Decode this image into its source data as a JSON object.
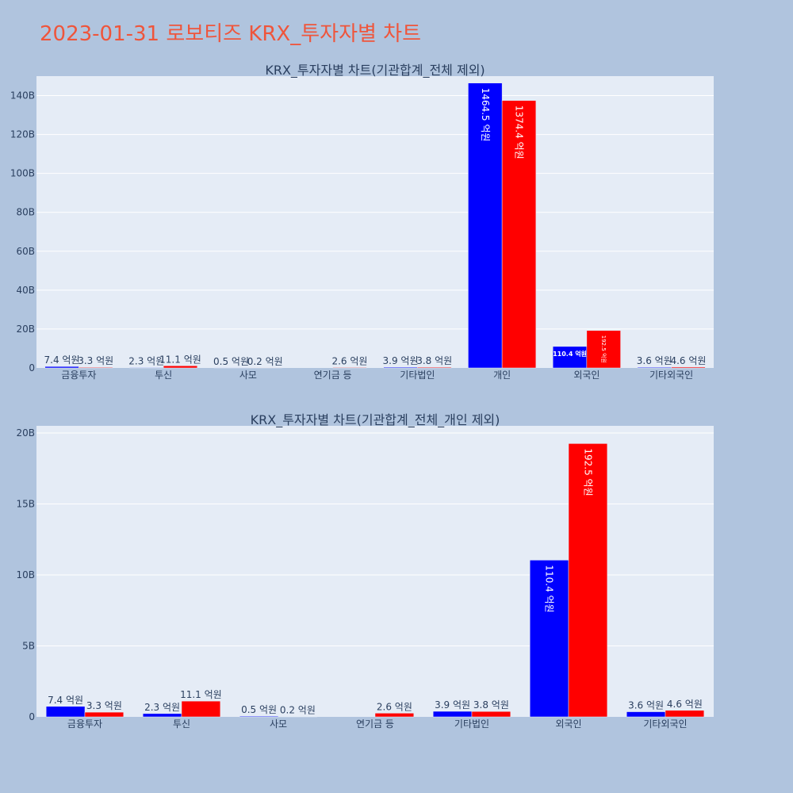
{
  "page": {
    "title": "2023-01-31 로보티즈 KRX_투자자별 차트"
  },
  "colors": {
    "buy": "#0000ff",
    "sell": "#ff0000",
    "plot_bg": "#e5ecf6",
    "page_bg": "#b0c4de",
    "grid": "#ffffff",
    "text": "#2a3f5f",
    "title": "#ef553b"
  },
  "chart_data": [
    {
      "type": "bar",
      "title": "KRX_투자자별 차트(기관합계_전체 제외)",
      "categories": [
        "금융투자",
        "투신",
        "사모",
        "연기금 등",
        "기타법인",
        "개인",
        "외국인",
        "기타외국인"
      ],
      "ylim": [
        0,
        150
      ],
      "yticks": [
        0,
        20,
        40,
        60,
        80,
        100,
        120,
        140
      ],
      "ytick_labels": [
        "0",
        "20B",
        "40B",
        "60B",
        "80B",
        "100B",
        "120B",
        "140B"
      ],
      "grid": true,
      "series": [
        {
          "color": "#0000ff",
          "values": [
            0.74,
            0.23,
            0.05,
            0,
            0.39,
            146.45,
            11.04,
            0.36
          ],
          "labels": [
            "7.4 억원",
            "2.3 억원",
            "0.5 억원",
            "",
            "3.9 억원",
            "1464.5 억원",
            "110.4 억원",
            "3.6 억원"
          ]
        },
        {
          "color": "#ff0000",
          "values": [
            0.33,
            1.11,
            0.02,
            0.26,
            0.38,
            137.44,
            19.25,
            0.46
          ],
          "labels": [
            "3.3 억원",
            "11.1 억원",
            "0.2 억원",
            "2.6 억원",
            "3.8 억원",
            "1374.4 억원",
            "192.5 억원",
            "4.6 억원"
          ]
        }
      ]
    },
    {
      "type": "bar",
      "title": "KRX_투자자별 차트(기관합계_전체_개인 제외)",
      "categories": [
        "금융투자",
        "투신",
        "사모",
        "연기금 등",
        "기타법인",
        "외국인",
        "기타외국인"
      ],
      "ylim": [
        0,
        20.5
      ],
      "yticks": [
        0,
        5,
        10,
        15,
        20
      ],
      "ytick_labels": [
        "0",
        "5B",
        "10B",
        "15B",
        "20B"
      ],
      "grid": true,
      "series": [
        {
          "color": "#0000ff",
          "values": [
            0.74,
            0.23,
            0.05,
            0,
            0.39,
            11.04,
            0.36
          ],
          "labels": [
            "7.4 억원",
            "2.3 억원",
            "0.5 억원",
            "",
            "3.9 억원",
            "110.4 억원",
            "3.6 억원"
          ]
        },
        {
          "color": "#ff0000",
          "values": [
            0.33,
            1.11,
            0.02,
            0.26,
            0.38,
            19.25,
            0.46
          ],
          "labels": [
            "3.3 억원",
            "11.1 억원",
            "0.2 억원",
            "2.6 억원",
            "3.8 억원",
            "192.5 억원",
            "4.6 억원"
          ]
        }
      ]
    }
  ]
}
